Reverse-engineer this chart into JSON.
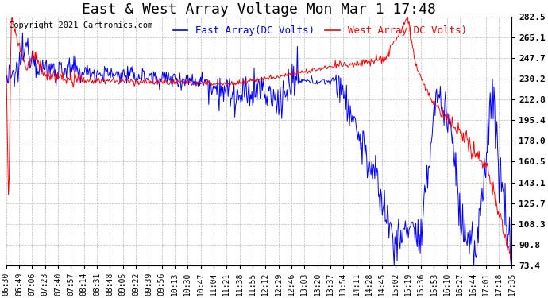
{
  "title": "East & West Array Voltage Mon Mar 1 17:48",
  "copyright": "Copyright 2021 Cartronics.com",
  "legend_east": "East Array(DC Volts)",
  "legend_west": "West Array(DC Volts)",
  "east_color": "blue",
  "west_color": "red",
  "bg_color": "white",
  "plot_bg_color": "white",
  "grid_color": "#aaaaaa",
  "ylim": [
    73.4,
    282.5
  ],
  "yticks": [
    73.4,
    90.8,
    108.3,
    125.7,
    143.1,
    160.5,
    178.0,
    195.4,
    212.8,
    230.2,
    247.7,
    265.1,
    282.5
  ],
  "xtick_labels": [
    "06:30",
    "06:49",
    "07:06",
    "07:23",
    "07:40",
    "07:57",
    "08:14",
    "08:31",
    "08:48",
    "09:05",
    "09:22",
    "09:39",
    "09:56",
    "10:13",
    "10:30",
    "10:47",
    "11:04",
    "11:21",
    "11:38",
    "11:55",
    "12:12",
    "12:29",
    "12:46",
    "13:03",
    "13:20",
    "13:37",
    "13:54",
    "14:11",
    "14:28",
    "14:45",
    "15:02",
    "15:19",
    "15:36",
    "15:53",
    "16:10",
    "16:27",
    "16:44",
    "17:01",
    "17:18",
    "17:35"
  ],
  "title_fontsize": 13,
  "axis_fontsize": 7,
  "ylabel_fontsize": 8,
  "legend_fontsize": 9,
  "copyright_fontsize": 7.5,
  "linewidth": 0.7
}
